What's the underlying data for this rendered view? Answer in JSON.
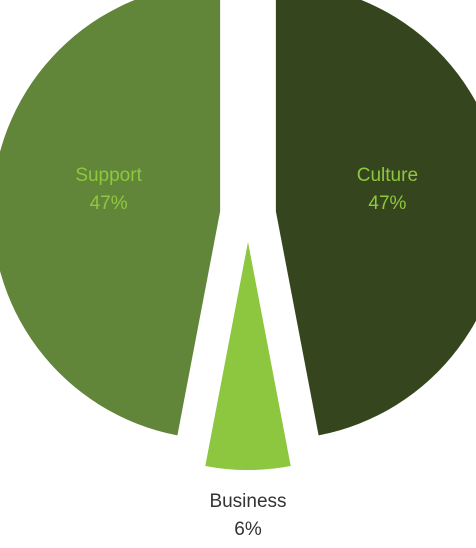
{
  "chart_data": {
    "type": "pie",
    "style": "exploded",
    "slices": [
      {
        "label": "Culture",
        "value": 47,
        "percent_label": "47%",
        "color": "#35461e",
        "label_color": "#8fc73e",
        "label_position": "inside"
      },
      {
        "label": "Business",
        "value": 6,
        "percent_label": "6%",
        "color": "#8dc63f",
        "label_color": "#333333",
        "label_position": "outside"
      },
      {
        "label": "Support",
        "value": 47,
        "percent_label": "47%",
        "color": "#61863a",
        "label_color": "#8fc73e",
        "label_position": "inside"
      }
    ],
    "start_angle": "12 o'clock",
    "direction": "clockwise",
    "legend": "none"
  }
}
